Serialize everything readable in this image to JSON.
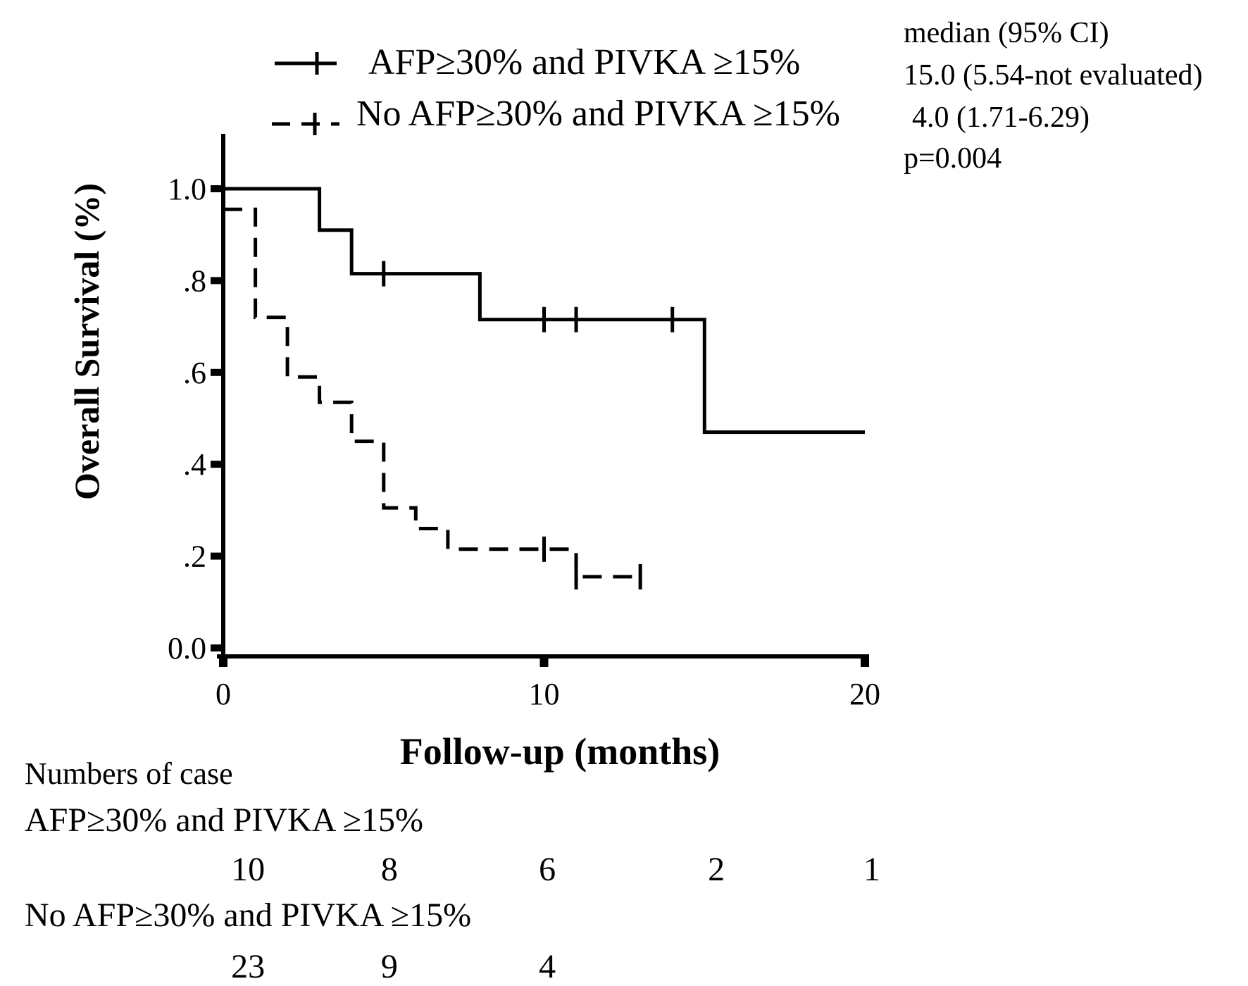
{
  "axis_titles": {
    "y": "Overall Survival (%)",
    "x": "Follow-up (months)"
  },
  "legend": {
    "entries": [
      {
        "label": "AFP≥30% and PIVKA ≥15%",
        "line_style": "solid",
        "marker": "plus-censor-tick"
      },
      {
        "label": "No AFP≥30% and PIVKA ≥15%",
        "line_style": "dashed",
        "marker": "plus-censor-tick"
      }
    ]
  },
  "annotation": {
    "header": "median (95% CI)",
    "group1_median": "15.0 (5.54-not evaluated)",
    "group2_median": "4.0 (1.71-6.29)",
    "p_value": "p=0.004"
  },
  "risk_table": {
    "title": "Numbers of case",
    "rows": [
      {
        "label": "AFP≥30% and PIVKA ≥15%",
        "counts": [
          {
            "month": 0,
            "pos_month": 0.77,
            "n": "10"
          },
          {
            "month": 5,
            "pos_month": 5.18,
            "n": "8"
          },
          {
            "month": 10,
            "pos_month": 10.1,
            "n": "6"
          },
          {
            "month": 15,
            "pos_month": 15.37,
            "n": "2"
          },
          {
            "month": 20,
            "pos_month": 20.22,
            "n": "1"
          }
        ]
      },
      {
        "label": "No AFP≥30% and PIVKA ≥15%",
        "counts": [
          {
            "month": 0,
            "pos_month": 0.77,
            "n": "23"
          },
          {
            "month": 5,
            "pos_month": 5.18,
            "n": "9"
          },
          {
            "month": 10,
            "pos_month": 10.1,
            "n": "4"
          }
        ]
      }
    ]
  },
  "chart_data": {
    "type": "line",
    "subtype": "kaplan-meier-step",
    "title": "",
    "xlabel": "Follow-up (months)",
    "ylabel": "Overall Survival (%)",
    "xlim": [
      0,
      20
    ],
    "ylim": [
      0.0,
      1.0
    ],
    "grid": false,
    "legend_position": "top-left above plot",
    "x_ticks": [
      {
        "value": 0,
        "label": "0"
      },
      {
        "value": 10,
        "label": "10"
      },
      {
        "value": 20,
        "label": "20"
      }
    ],
    "y_ticks": [
      {
        "value": 1.0,
        "label": "1.0"
      },
      {
        "value": 0.8,
        "label": ".8"
      },
      {
        "value": 0.6,
        "label": ".6"
      },
      {
        "value": 0.4,
        "label": ".4"
      },
      {
        "value": 0.2,
        "label": ".2"
      },
      {
        "value": 0.0,
        "label": "0.0"
      }
    ],
    "series": [
      {
        "name": "AFP≥30% and PIVKA ≥15%",
        "style": "solid",
        "color": "#000000",
        "n_at_start": 10,
        "median_95ci": "15.0 (5.54-not evaluated)",
        "step_points": [
          [
            0,
            1.0
          ],
          [
            3,
            1.0
          ],
          [
            3,
            0.91
          ],
          [
            4,
            0.91
          ],
          [
            4,
            0.815
          ],
          [
            8,
            0.815
          ],
          [
            8,
            0.715
          ],
          [
            15,
            0.715
          ],
          [
            15,
            0.47
          ],
          [
            20,
            0.47
          ]
        ],
        "censor_marks": [
          [
            5,
            0.815
          ],
          [
            10,
            0.715
          ],
          [
            11,
            0.715
          ],
          [
            14,
            0.715
          ]
        ]
      },
      {
        "name": "No AFP≥30% and PIVKA ≥15%",
        "style": "dashed",
        "color": "#000000",
        "n_at_start": 23,
        "median_95ci": "4.0 (1.71-6.29)",
        "step_points": [
          [
            0,
            0.955
          ],
          [
            1,
            0.955
          ],
          [
            1,
            0.72
          ],
          [
            2,
            0.72
          ],
          [
            2,
            0.59
          ],
          [
            3,
            0.59
          ],
          [
            3,
            0.535
          ],
          [
            4,
            0.535
          ],
          [
            4,
            0.45
          ],
          [
            5,
            0.45
          ],
          [
            5,
            0.305
          ],
          [
            6,
            0.305
          ],
          [
            6,
            0.26
          ],
          [
            7,
            0.26
          ],
          [
            7,
            0.215
          ],
          [
            11,
            0.215
          ],
          [
            11,
            0.155
          ],
          [
            13,
            0.155
          ]
        ],
        "censor_marks": [
          [
            10,
            0.215
          ],
          [
            11,
            0.155
          ],
          [
            13,
            0.155
          ]
        ]
      }
    ],
    "p_value": "p=0.004"
  }
}
